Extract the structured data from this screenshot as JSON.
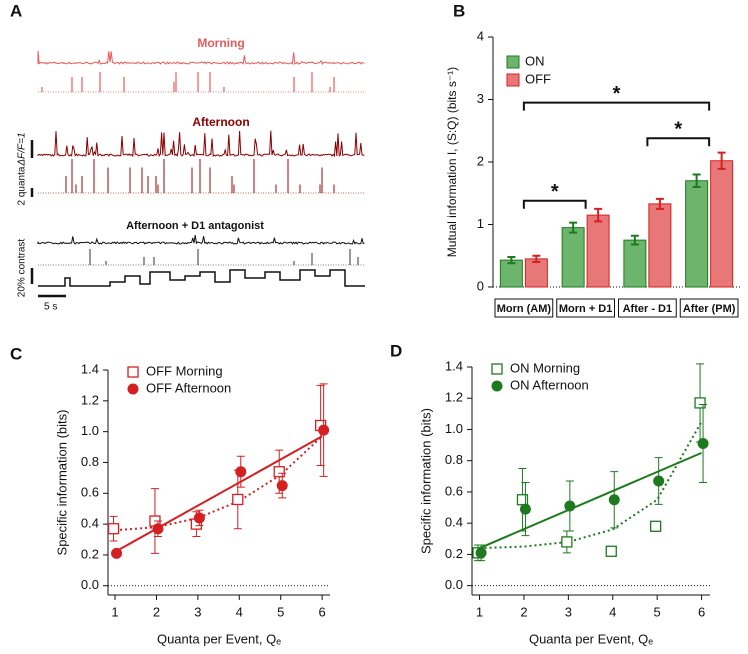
{
  "panel_a": {
    "label": "A",
    "titles": [
      "Morning",
      "Afternoon",
      "Afternoon + D1 antagonist"
    ],
    "scale_labels": [
      "ΔF/F=1",
      "2 quanta",
      "20% contrast",
      "5 s"
    ]
  },
  "chart_data": [
    {
      "panel": "B",
      "type": "bar",
      "ylabel": "Mutual information I, (S:Q) (bits s⁻¹)",
      "categories": [
        "Morn (AM)",
        "Morn + D1",
        "After - D1",
        "After (PM)"
      ],
      "series": [
        {
          "name": "ON",
          "color": "#6db56d",
          "edge": "#1e7a1e",
          "values": [
            0.43,
            0.95,
            0.75,
            1.7
          ],
          "errors": [
            0.05,
            0.08,
            0.07,
            0.1
          ]
        },
        {
          "name": "OFF",
          "color": "#e87878",
          "edge": "#d42020",
          "values": [
            0.45,
            1.15,
            1.33,
            2.02
          ],
          "errors": [
            0.05,
            0.1,
            0.08,
            0.13
          ]
        }
      ],
      "ylim": [
        0,
        4
      ],
      "yticks": [
        0,
        1,
        2,
        3,
        4
      ],
      "legend": "upper left",
      "annotations": [
        {
          "text": "*",
          "from": 0,
          "to": 1,
          "y": 1.38
        },
        {
          "text": "*",
          "from": 2,
          "to": 3,
          "y": 2.38
        },
        {
          "text": "*",
          "from": 0,
          "to": 3,
          "y": 2.95
        }
      ]
    },
    {
      "panel": "C",
      "type": "scatter",
      "ylabel": "Specific information (bits)",
      "xlabel": "Quanta per Event, Qₑ",
      "x": [
        1,
        2,
        3,
        4,
        5,
        6
      ],
      "series": [
        {
          "name": "OFF Morning",
          "color": "#d42020",
          "marker": "open-square",
          "values": [
            0.37,
            0.42,
            0.4,
            0.56,
            0.74,
            1.04
          ],
          "errors": [
            0.08,
            0.21,
            0.08,
            0.19,
            0.14,
            0.26
          ],
          "fit": {
            "style": "dotted",
            "x": [
              1,
              2,
              3,
              4,
              5,
              6
            ],
            "values": [
              0.36,
              0.38,
              0.44,
              0.55,
              0.72,
              0.97
            ]
          }
        },
        {
          "name": "OFF Afternoon",
          "color": "#d42020",
          "marker": "circle",
          "values": [
            0.21,
            0.37,
            0.44,
            0.74,
            0.65,
            1.01
          ],
          "errors": [
            0.02,
            0.05,
            0.05,
            0.1,
            0.08,
            0.3
          ],
          "fit": {
            "style": "solid",
            "x": [
              1,
              6
            ],
            "values": [
              0.22,
              0.97
            ]
          }
        }
      ],
      "xlim": [
        0.83,
        6.19
      ],
      "xticks": [
        1,
        2,
        3,
        4,
        5,
        6
      ],
      "ylim": [
        -0.06,
        1.4
      ],
      "yticks": [
        {
          "value": 0,
          "label": "0.0"
        },
        0.2,
        0.4,
        0.6,
        0.8,
        {
          "value": 1,
          "label": "1.0"
        },
        1.2,
        1.4
      ],
      "legend": "upper left"
    },
    {
      "panel": "D",
      "type": "scatter",
      "ylabel": "Specific information (bits)",
      "xlabel": "Quanta per Event, Qₑ",
      "x": [
        1,
        2,
        3,
        4,
        5,
        6
      ],
      "series": [
        {
          "name": "ON Morning",
          "color": "#1e7a1e",
          "marker": "open-square",
          "values": [
            0.21,
            0.55,
            0.28,
            0.22,
            0.38,
            1.17
          ],
          "errors": [
            0.05,
            0.2,
            0.07,
            0.02,
            0.02,
            0.25
          ],
          "fit": {
            "style": "dotted",
            "x": [
              1,
              2,
              3,
              4,
              5,
              6
            ],
            "values": [
              0.24,
              0.25,
              0.28,
              0.36,
              0.55,
              1.05
            ]
          }
        },
        {
          "name": "ON Afternoon",
          "color": "#1e7a1e",
          "marker": "circle",
          "values": [
            0.21,
            0.49,
            0.51,
            0.55,
            0.67,
            0.91
          ],
          "errors": [
            0.05,
            0.17,
            0.16,
            0.18,
            0.15,
            0.25
          ],
          "fit": {
            "style": "solid",
            "x": [
              1,
              6
            ],
            "values": [
              0.24,
              0.85
            ]
          }
        }
      ],
      "xlim": [
        0.83,
        6.19
      ],
      "xticks": [
        1,
        2,
        3,
        4,
        5,
        6
      ],
      "ylim": [
        -0.06,
        1.4
      ],
      "yticks": [
        {
          "value": 0,
          "label": "0.0"
        },
        0.2,
        0.4,
        0.6,
        0.8,
        {
          "value": 1,
          "label": "1.0"
        },
        1.2,
        1.4
      ],
      "legend": "upper left"
    }
  ]
}
